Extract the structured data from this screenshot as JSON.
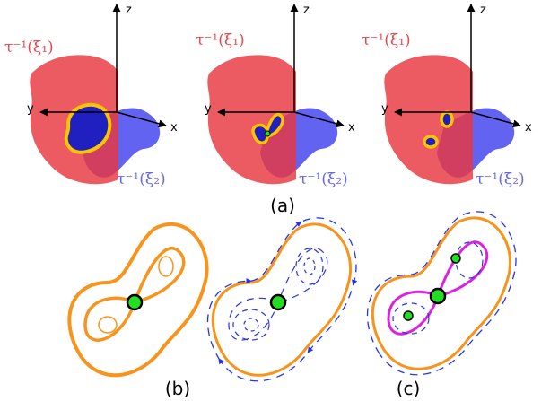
{
  "panels": [
    {
      "axes": {
        "z": "z",
        "y": "y",
        "x": "x"
      },
      "labels": [
        "τ⁻¹(ξ₁)",
        "τ⁻¹(ξ₂)"
      ]
    },
    {
      "axes": {
        "z": "z",
        "y": "y",
        "x": "x"
      },
      "labels": [
        "τ⁻¹(ξ₁)",
        "τ⁻¹(ξ₂)"
      ]
    },
    {
      "axes": {
        "z": "z",
        "y": "y",
        "x": "x"
      },
      "labels": [
        "τ⁻¹(ξ₁)",
        "τ⁻¹(ξ₂)"
      ]
    }
  ],
  "captions": [
    "(a)",
    "(b)",
    "(c)"
  ]
}
